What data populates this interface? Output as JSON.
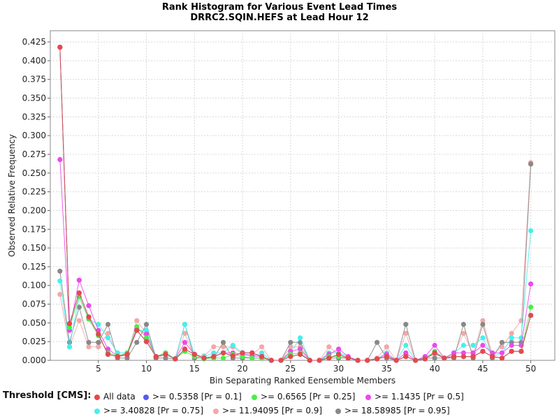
{
  "chart_data": {
    "type": "line",
    "title": "Rank Histogram for Various Event Lead Times",
    "subtitle": "DRRC2.SQIN.HEFS at Lead Hour 12",
    "xlabel": "Bin Separating Ranked Eensemble Members",
    "ylabel": "Observed Relative Frequency",
    "xlim": [
      0,
      52.5
    ],
    "ylim": [
      0,
      0.44
    ],
    "xticks": [
      5,
      10,
      15,
      20,
      25,
      30,
      35,
      40,
      45,
      50
    ],
    "yticks": [
      0.0,
      0.025,
      0.05,
      0.075,
      0.1,
      0.125,
      0.15,
      0.175,
      0.2,
      0.225,
      0.25,
      0.275,
      0.3,
      0.325,
      0.35,
      0.375,
      0.4,
      0.425
    ],
    "grid": true,
    "legend_title": "Threshold [CMS]:",
    "legend_position": "bottom",
    "x": [
      1,
      2,
      3,
      4,
      5,
      6,
      7,
      8,
      9,
      10,
      11,
      12,
      13,
      14,
      15,
      16,
      17,
      18,
      19,
      20,
      21,
      22,
      23,
      24,
      25,
      26,
      27,
      28,
      29,
      30,
      31,
      32,
      33,
      34,
      35,
      36,
      37,
      38,
      39,
      40,
      41,
      42,
      43,
      44,
      45,
      46,
      47,
      48,
      49,
      50
    ],
    "series": [
      {
        "name": "All data",
        "color": "#e84848",
        "values": [
          0.418,
          0.049,
          0.09,
          0.058,
          0.035,
          0.008,
          0.005,
          0.008,
          0.04,
          0.025,
          0.005,
          0.008,
          0.002,
          0.015,
          0.008,
          0.003,
          0.005,
          0.01,
          0.006,
          0.01,
          0.01,
          0.005,
          0.0,
          0.0,
          0.005,
          0.008,
          0.0,
          0.0,
          0.003,
          0.008,
          0.003,
          0.0,
          0.0,
          0.002,
          0.005,
          0.0,
          0.005,
          0.0,
          0.002,
          0.01,
          0.003,
          0.005,
          0.005,
          0.005,
          0.012,
          0.005,
          0.003,
          0.012,
          0.012,
          0.06
        ]
      },
      {
        "name": ">= 0.5358 [Pr = 0.1]",
        "color": "#5a5aee",
        "values": [
          0.418,
          0.049,
          0.09,
          0.058,
          0.035,
          0.008,
          0.005,
          0.008,
          0.04,
          0.025,
          0.005,
          0.008,
          0.002,
          0.015,
          0.008,
          0.003,
          0.005,
          0.01,
          0.006,
          0.01,
          0.01,
          0.005,
          0.0,
          0.0,
          0.005,
          0.008,
          0.0,
          0.0,
          0.003,
          0.008,
          0.003,
          0.0,
          0.0,
          0.002,
          0.005,
          0.0,
          0.005,
          0.0,
          0.002,
          0.01,
          0.003,
          0.005,
          0.005,
          0.005,
          0.012,
          0.005,
          0.003,
          0.012,
          0.012,
          0.06
        ]
      },
      {
        "name": ">= 0.6565 [Pr = 0.25]",
        "color": "#4aee4a",
        "values": [
          0.418,
          0.044,
          0.085,
          0.055,
          0.033,
          0.01,
          0.006,
          0.01,
          0.045,
          0.03,
          0.005,
          0.01,
          0.002,
          0.012,
          0.005,
          0.002,
          0.003,
          0.003,
          0.008,
          0.005,
          0.003,
          0.003,
          0.0,
          0.0,
          0.008,
          0.01,
          0.0,
          0.0,
          0.005,
          0.005,
          0.003,
          0.0,
          0.0,
          0.002,
          0.005,
          0.0,
          0.005,
          0.0,
          0.002,
          0.012,
          0.003,
          0.005,
          0.005,
          0.005,
          0.012,
          0.005,
          0.003,
          0.012,
          0.012,
          0.071
        ]
      },
      {
        "name": ">= 1.1435 [Pr = 0.5]",
        "color": "#ee48ee",
        "values": [
          0.268,
          0.04,
          0.107,
          0.073,
          0.04,
          0.015,
          0.006,
          0.008,
          0.042,
          0.035,
          0.005,
          0.008,
          0.002,
          0.024,
          0.008,
          0.003,
          0.005,
          0.01,
          0.01,
          0.008,
          0.006,
          0.005,
          0.0,
          0.0,
          0.012,
          0.015,
          0.0,
          0.0,
          0.008,
          0.015,
          0.005,
          0.0,
          0.0,
          0.002,
          0.008,
          0.0,
          0.01,
          0.0,
          0.005,
          0.02,
          0.003,
          0.01,
          0.01,
          0.01,
          0.02,
          0.01,
          0.01,
          0.02,
          0.02,
          0.102
        ]
      },
      {
        "name": ">= 3.40828 [Pr = 0.75]",
        "color": "#48eeee",
        "values": [
          0.106,
          0.018,
          0.085,
          0.055,
          0.048,
          0.03,
          0.01,
          0.01,
          0.04,
          0.04,
          0.005,
          0.01,
          0.002,
          0.048,
          0.008,
          0.005,
          0.01,
          0.01,
          0.02,
          0.01,
          0.005,
          0.01,
          0.0,
          0.0,
          0.01,
          0.03,
          0.0,
          0.0,
          0.01,
          0.01,
          0.005,
          0.0,
          0.0,
          0.002,
          0.01,
          0.0,
          0.02,
          0.0,
          0.005,
          0.01,
          0.003,
          0.01,
          0.02,
          0.02,
          0.03,
          0.005,
          0.01,
          0.03,
          0.03,
          0.173
        ]
      },
      {
        "name": ">= 11.94095 [Pr = 0.9]",
        "color": "#f4a8a8",
        "values": [
          0.088,
          0.018,
          0.053,
          0.018,
          0.018,
          0.036,
          0.006,
          0.006,
          0.053,
          0.036,
          0.003,
          0.008,
          0.002,
          0.036,
          0.003,
          0.006,
          0.018,
          0.018,
          0.018,
          0.008,
          0.008,
          0.018,
          0.0,
          0.0,
          0.018,
          0.018,
          0.0,
          0.0,
          0.018,
          0.008,
          0.003,
          0.0,
          0.0,
          0.003,
          0.018,
          0.0,
          0.036,
          0.0,
          0.003,
          0.008,
          0.003,
          0.008,
          0.036,
          0.008,
          0.053,
          0.008,
          0.018,
          0.036,
          0.053,
          0.264
        ]
      },
      {
        "name": ">= 18.58985 [Pr = 0.95]",
        "color": "#888888",
        "values": [
          0.119,
          0.024,
          0.071,
          0.024,
          0.024,
          0.048,
          0.003,
          0.003,
          0.024,
          0.048,
          0.003,
          0.003,
          0.002,
          0.048,
          0.003,
          0.003,
          0.003,
          0.024,
          0.003,
          0.003,
          0.003,
          0.003,
          0.0,
          0.0,
          0.024,
          0.024,
          0.0,
          0.0,
          0.003,
          0.003,
          0.003,
          0.0,
          0.0,
          0.024,
          0.003,
          0.0,
          0.048,
          0.0,
          0.003,
          0.003,
          0.003,
          0.003,
          0.048,
          0.003,
          0.048,
          0.003,
          0.024,
          0.024,
          0.024,
          0.262
        ]
      }
    ]
  }
}
